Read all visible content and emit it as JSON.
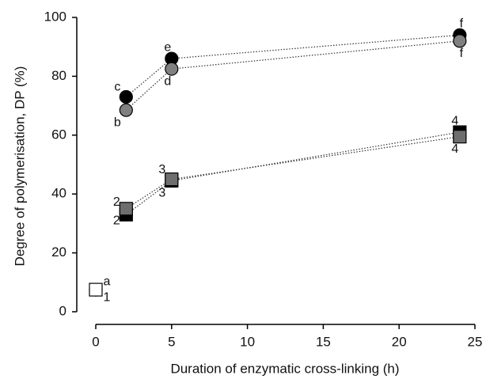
{
  "chart_data": {
    "type": "scatter",
    "x_label": "Duration of enzymatic cross-linking (h)",
    "y_label": "Degree of polymerisation, DP (%)",
    "xlim": [
      0,
      25
    ],
    "ylim": [
      0,
      100
    ],
    "xticks": [
      0,
      5,
      10,
      15,
      20,
      25
    ],
    "yticks": [
      0,
      20,
      40,
      60,
      80,
      100
    ],
    "series": [
      {
        "marker": "circle",
        "color": "#000000",
        "x": [
          2,
          5,
          24
        ],
        "values": [
          73,
          86,
          94
        ],
        "point_labels": [
          "c",
          "e",
          "f"
        ]
      },
      {
        "marker": "circle",
        "color": "#808080",
        "x": [
          2,
          5,
          24
        ],
        "values": [
          68.5,
          82.5,
          92
        ],
        "point_labels": [
          "b",
          "d",
          "f"
        ]
      },
      {
        "marker": "square",
        "color": "#000000",
        "x": [
          2,
          5,
          24
        ],
        "values": [
          33,
          44.5,
          61
        ],
        "point_labels": [
          "2",
          "3",
          "4"
        ]
      },
      {
        "marker": "square",
        "color": "#6e6e6e",
        "x": [
          2,
          5,
          24
        ],
        "values": [
          35,
          45,
          59.5
        ],
        "point_labels": [
          "2",
          "3",
          "4"
        ]
      },
      {
        "marker": "circle",
        "color": "#ffffff",
        "x": [
          0
        ],
        "values": [
          7.5
        ],
        "point_labels": [
          "a"
        ]
      },
      {
        "marker": "square",
        "color": "#ffffff",
        "x": [
          0
        ],
        "values": [
          7.5
        ],
        "point_labels": [
          "1"
        ]
      }
    ]
  }
}
